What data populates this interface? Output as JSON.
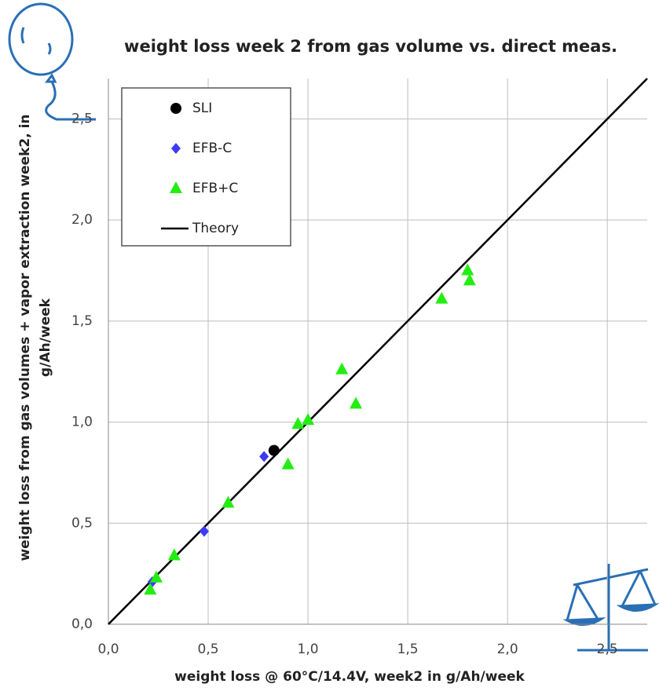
{
  "chart_data": {
    "type": "scatter",
    "title": "weight loss week 2 from gas volume vs. direct meas.",
    "xlabel": "weight loss @ 60°C/14.4V, week2  in  g/Ah/week",
    "ylabel": [
      "weight loss from gas volumes + vapor extraction week2, in",
      "g/Ah/week"
    ],
    "xlim": [
      0,
      2.7
    ],
    "ylim": [
      0,
      2.7
    ],
    "xticks": [
      {
        "value": 0,
        "label": "0,0"
      },
      {
        "value": 0.5,
        "label": "0,5"
      },
      {
        "value": 1,
        "label": "1,0"
      },
      {
        "value": 1.5,
        "label": "1,5"
      },
      {
        "value": 2,
        "label": "2,0"
      },
      {
        "value": 2.5,
        "label": "2,5"
      }
    ],
    "yticks": [
      {
        "value": 0,
        "label": "0,0"
      },
      {
        "value": 0.5,
        "label": "0,5"
      },
      {
        "value": 1,
        "label": "1,0"
      },
      {
        "value": 1.5,
        "label": "1,5"
      },
      {
        "value": 2,
        "label": "2,0"
      },
      {
        "value": 2.5,
        "label": "2,5"
      }
    ],
    "grid": true,
    "legend": "upper left",
    "series": [
      {
        "name": "SLI",
        "color": "#000000",
        "marker": "circle",
        "x": [
          0.83
        ],
        "values": [
          0.86
        ]
      },
      {
        "name": "EFB-C",
        "color": "#3b3bf5",
        "marker": "diamond",
        "x": [
          0.78,
          0.48,
          0.22
        ],
        "values": [
          0.83,
          0.46,
          0.21
        ]
      },
      {
        "name": "EFB+C",
        "color": "#22ee11",
        "marker": "triangle",
        "x": [
          0.21,
          0.24,
          0.33,
          0.6,
          0.9,
          0.95,
          1.0,
          1.17,
          1.24,
          1.67,
          1.8,
          1.81
        ],
        "values": [
          0.17,
          0.23,
          0.34,
          0.6,
          0.79,
          0.99,
          1.01,
          1.26,
          1.09,
          1.61,
          1.75,
          1.7
        ]
      },
      {
        "name": "Theory",
        "color": "#000000",
        "marker": "line",
        "x": [
          0,
          2.7
        ],
        "values": [
          0,
          2.7
        ]
      }
    ]
  }
}
